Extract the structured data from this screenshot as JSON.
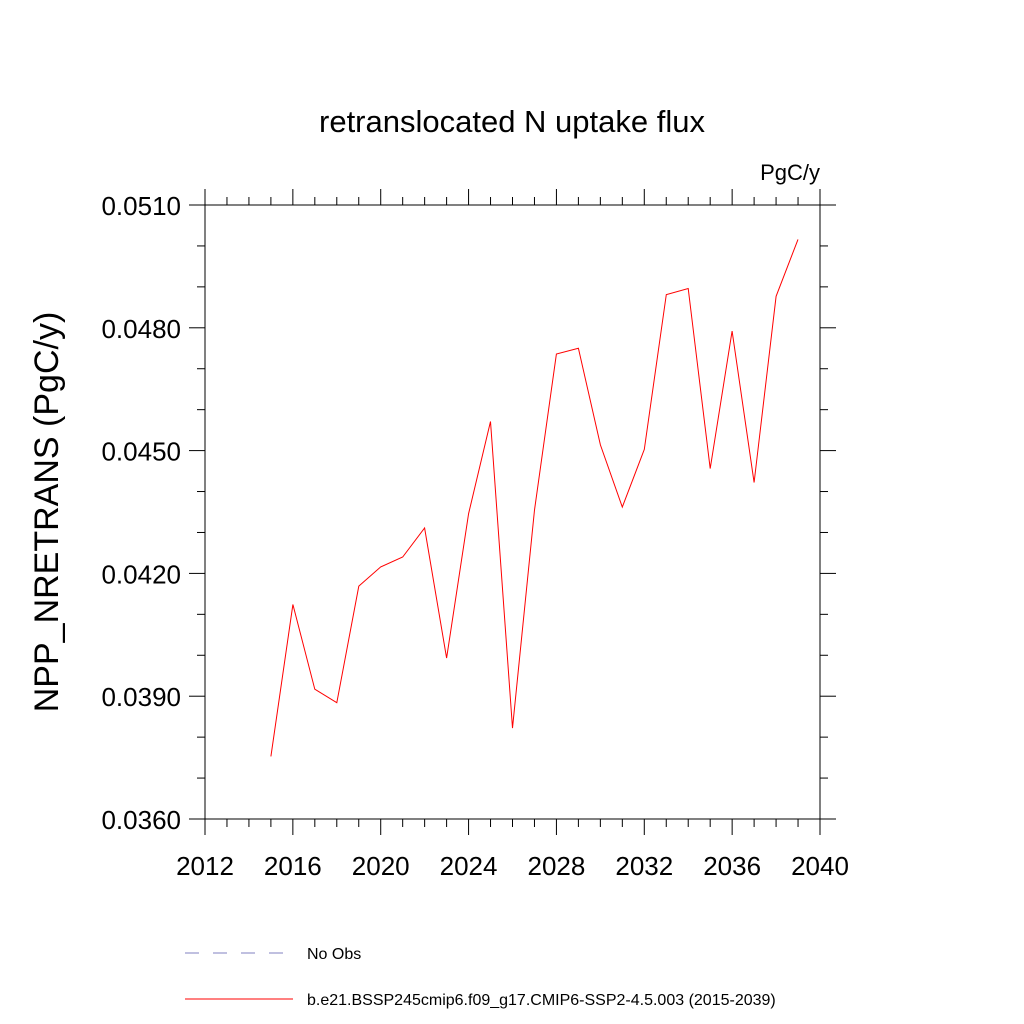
{
  "chart_data": {
    "type": "line",
    "title": "retranslocated N uptake flux",
    "units_label": "PgC/y",
    "ylabel": "NPP_NRETRANS  (PgC/y)",
    "xlabel": "",
    "xlim": [
      2012,
      2040
    ],
    "ylim": [
      0.036,
      0.051
    ],
    "x_ticks": [
      2012,
      2016,
      2020,
      2024,
      2028,
      2032,
      2036,
      2040
    ],
    "x_tick_labels": [
      "2012",
      "2016",
      "2020",
      "2024",
      "2028",
      "2032",
      "2036",
      "2040"
    ],
    "y_ticks": [
      0.036,
      0.039,
      0.042,
      0.045,
      0.048,
      0.051
    ],
    "y_tick_labels": [
      "0.0360",
      "0.0390",
      "0.0420",
      "0.0450",
      "0.0480",
      "0.0510"
    ],
    "x_minor_step": 1,
    "y_minor_step": 0.001,
    "series": [
      {
        "name": "b.e21.BSSP245cmip6.f09_g17.CMIP6-SSP2-4.5.003 (2015-2039)",
        "color": "#ff0000",
        "style": "solid",
        "x": [
          2015,
          2016,
          2017,
          2018,
          2019,
          2020,
          2021,
          2022,
          2023,
          2024,
          2025,
          2026,
          2027,
          2028,
          2029,
          2030,
          2031,
          2032,
          2033,
          2034,
          2035,
          2036,
          2037,
          2038,
          2039
        ],
        "values": [
          0.03753,
          0.04124,
          0.03917,
          0.03884,
          0.04169,
          0.04216,
          0.0424,
          0.04311,
          0.03993,
          0.04346,
          0.04571,
          0.03822,
          0.04355,
          0.04736,
          0.0475,
          0.04514,
          0.04362,
          0.04503,
          0.04881,
          0.04896,
          0.04456,
          0.04792,
          0.04422,
          0.04877,
          0.05016
        ]
      }
    ],
    "legend": [
      {
        "label": "No Obs",
        "color": "#8080c0",
        "style": "dashed"
      },
      {
        "label": "b.e21.BSSP245cmip6.f09_g17.CMIP6-SSP2-4.5.003 (2015-2039)",
        "color": "#ff0000",
        "style": "solid"
      }
    ],
    "legend_position": "bottom"
  }
}
